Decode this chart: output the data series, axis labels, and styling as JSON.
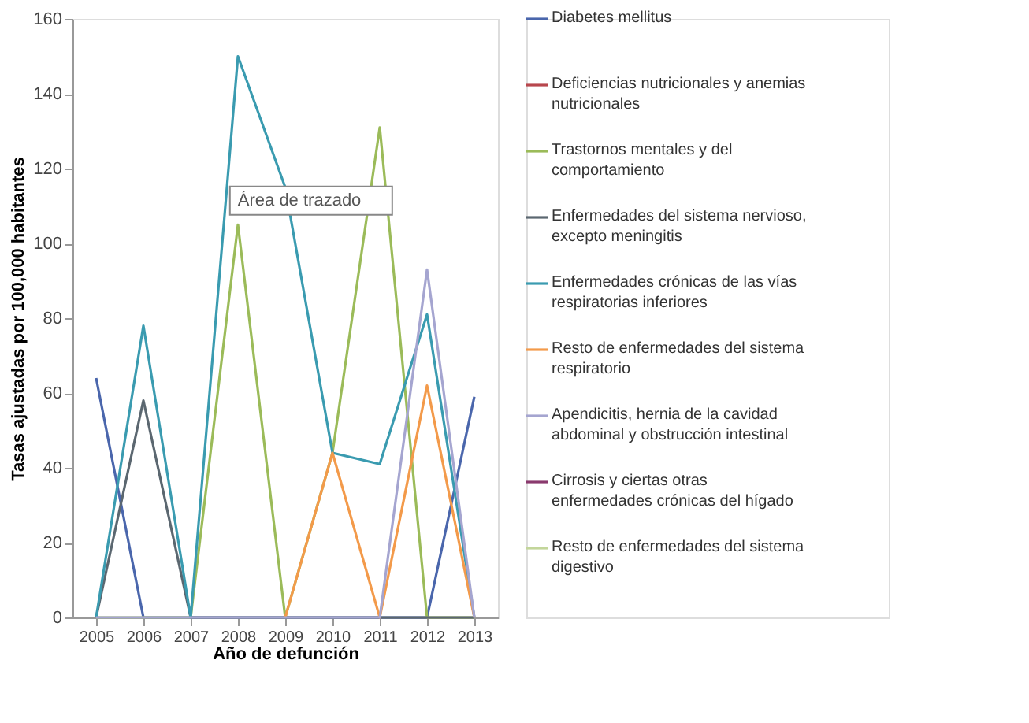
{
  "chart_data": {
    "type": "line",
    "xlabel": "Año de defunción",
    "ylabel": "Tasas ajustadas por 100,000 habitantes",
    "categories": [
      "2005",
      "2006",
      "2007",
      "2008",
      "2009",
      "2010",
      "2011",
      "2012",
      "2013"
    ],
    "ylim": [
      0,
      160
    ],
    "yticks": [
      0,
      20,
      40,
      60,
      80,
      100,
      120,
      140,
      160
    ],
    "grid": false,
    "legend": "right",
    "marker": "none",
    "line_style": "solid",
    "annotations": [
      "Área de trazado"
    ],
    "series": [
      {
        "name": "Diabetes mellitus",
        "color": "#4a66ac",
        "values": [
          64,
          0,
          0,
          0,
          0,
          0,
          0,
          0,
          59
        ]
      },
      {
        "name": "Deficiencias nutricionales y anemias nutricionales",
        "color": "#b8474d",
        "values": [
          null,
          null,
          null,
          null,
          null,
          null,
          null,
          null,
          null
        ]
      },
      {
        "name": "Trastornos mentales y del comportamiento",
        "color": "#9bbb59",
        "values": [
          0,
          0,
          0,
          105,
          0,
          44,
          131,
          0,
          0
        ]
      },
      {
        "name": "Enfermedades del sistema nervioso, excepto meningitis",
        "color": "#5b6770",
        "values": [
          0,
          58,
          0,
          0,
          0,
          0,
          0,
          0,
          0
        ]
      },
      {
        "name": "Enfermedades crónicas de las vías respiratorias inferiores",
        "color": "#3a9bb0",
        "values": [
          0,
          78,
          0,
          150,
          115,
          44,
          41,
          81,
          0
        ]
      },
      {
        "name": "Resto de enfermedades del sistema respiratorio",
        "color": "#f39a4a",
        "values": [
          null,
          null,
          null,
          null,
          0,
          44,
          0,
          62,
          0
        ]
      },
      {
        "name": "Apendicitis, hernia de la cavidad abdominal y obstrucción intestinal",
        "color": "#a5a5d0",
        "values": [
          0,
          0,
          0,
          0,
          0,
          0,
          0,
          93,
          0
        ]
      },
      {
        "name": "Cirrosis y ciertas otras enfermedades crónicas del hígado",
        "color": "#8a3a6e",
        "values": [
          null,
          null,
          null,
          null,
          null,
          null,
          null,
          null,
          null
        ]
      },
      {
        "name": "Resto de enfermedades del sistema digestivo",
        "color": "#c3d69b",
        "values": [
          null,
          null,
          null,
          null,
          null,
          null,
          null,
          null,
          null
        ]
      }
    ]
  }
}
